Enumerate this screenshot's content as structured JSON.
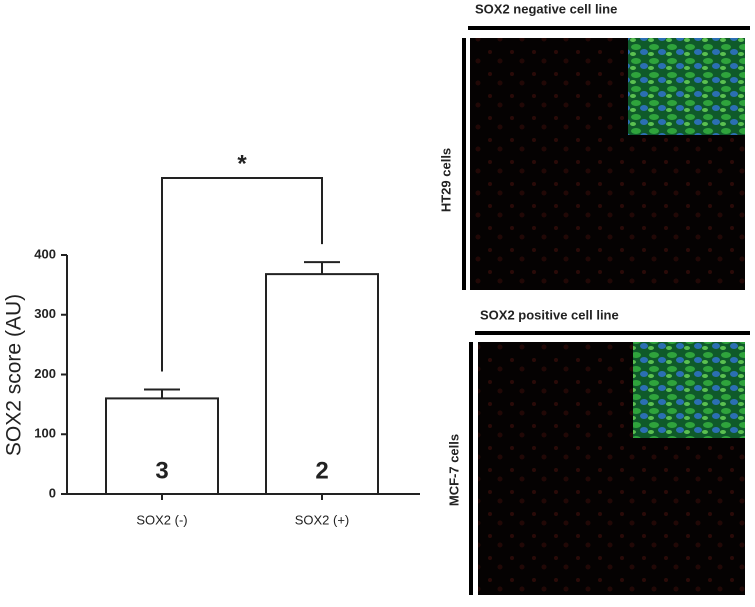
{
  "chart_data": {
    "type": "bar",
    "ylabel": "SOX2 score (AU)",
    "categories": [
      "SOX2 (-)",
      "SOX2 (+)"
    ],
    "values": [
      160,
      368
    ],
    "errors": [
      15,
      20
    ],
    "bar_annotations": [
      3,
      2
    ],
    "significance": "*",
    "color": "#ffffff",
    "ylim": [
      0,
      400
    ],
    "yticks": [
      0,
      100,
      200,
      300,
      400
    ]
  },
  "panels": [
    {
      "header": "SOX2 negative cell line",
      "label": "HT29 cells"
    },
    {
      "header": "SOX2 positive cell line",
      "label": "MCF-7 cells"
    }
  ]
}
